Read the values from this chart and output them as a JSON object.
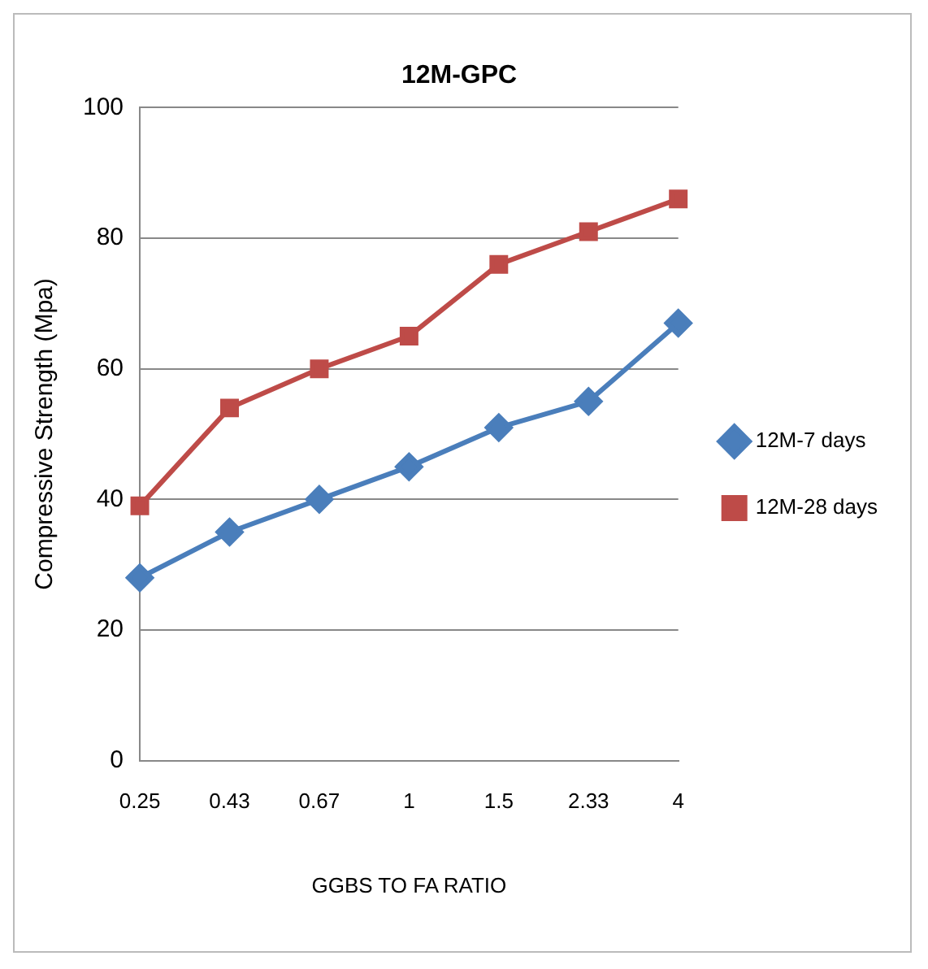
{
  "chart_data": {
    "type": "line",
    "title": "12M-GPC",
    "xlabel": "GGBS TO FA RATIO",
    "ylabel": "Compressive Strength (Mpa)",
    "categories": [
      "0.25",
      "0.43",
      "0.67",
      "1",
      "1.5",
      "2.33",
      "4"
    ],
    "series": [
      {
        "name": "12M-7 days",
        "color": "#4a7ebb",
        "marker": "diamond",
        "values": [
          28,
          35,
          40,
          45,
          51,
          55,
          67
        ]
      },
      {
        "name": "12M-28 days",
        "color": "#be4b48",
        "marker": "square",
        "values": [
          39,
          54,
          60,
          65,
          76,
          81,
          86
        ]
      }
    ],
    "ylim": [
      0,
      100
    ],
    "yticks": [
      0,
      20,
      40,
      60,
      80,
      100
    ],
    "grid": "y",
    "legend": "right"
  }
}
